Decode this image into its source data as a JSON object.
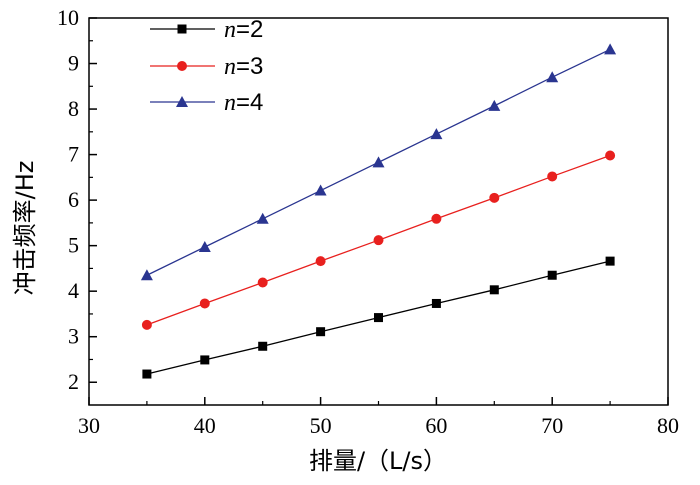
{
  "chart_data": {
    "type": "line",
    "xlabel": "排量/（L/s）",
    "ylabel": "冲击频率/Hz",
    "xlim": [
      30,
      80
    ],
    "ylim": [
      1.5,
      10
    ],
    "xticks": [
      30,
      40,
      50,
      60,
      70,
      80
    ],
    "yticks": [
      2,
      3,
      4,
      5,
      6,
      7,
      8,
      9,
      10
    ],
    "grid": false,
    "legend_position": "top-left",
    "x": [
      35,
      40,
      45,
      50,
      55,
      60,
      65,
      70,
      75
    ],
    "series": [
      {
        "name_var": "n",
        "name_value": "=2",
        "color": "#000000",
        "marker": "square",
        "values": [
          2.18,
          2.49,
          2.79,
          3.11,
          3.42,
          3.73,
          4.03,
          4.35,
          4.66
        ]
      },
      {
        "name_var": "n",
        "name_value": "=3",
        "color": "#e8201e",
        "marker": "circle",
        "values": [
          3.26,
          3.73,
          4.19,
          4.66,
          5.12,
          5.59,
          6.05,
          6.52,
          6.98
        ]
      },
      {
        "name_var": "n",
        "name_value": "=4",
        "color": "#2a3590",
        "marker": "triangle",
        "values": [
          4.35,
          4.97,
          5.59,
          6.21,
          6.83,
          7.45,
          8.07,
          8.7,
          9.31
        ]
      }
    ]
  }
}
